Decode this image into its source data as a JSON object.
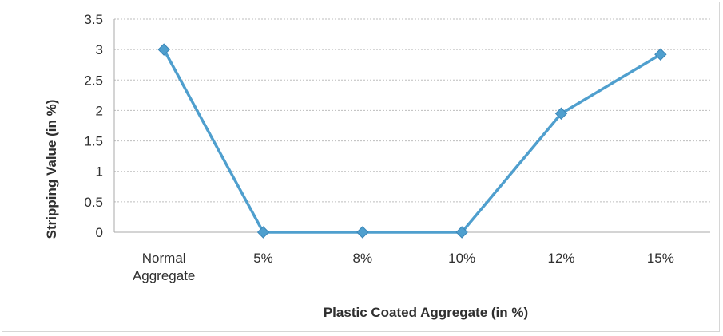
{
  "chart_data": {
    "type": "line",
    "title": "",
    "xlabel": "Plastic Coated Aggregate (in %)",
    "ylabel": "Stripping Value (in %)",
    "categories": [
      [
        "Normal",
        "Aggregate"
      ],
      [
        "5%"
      ],
      [
        "8%"
      ],
      [
        "10%"
      ],
      [
        "12%"
      ],
      [
        "15%"
      ]
    ],
    "series": [
      {
        "values": [
          3,
          0,
          0,
          0,
          1.95,
          2.92
        ],
        "color": "#4f9fce",
        "marker": "diamond"
      }
    ],
    "ylim": [
      0,
      3.5
    ],
    "yticks": [
      "0",
      "0.5",
      "1",
      "1.5",
      "2",
      "2.5",
      "3",
      "3.5"
    ],
    "grid": true,
    "legend": "none"
  }
}
